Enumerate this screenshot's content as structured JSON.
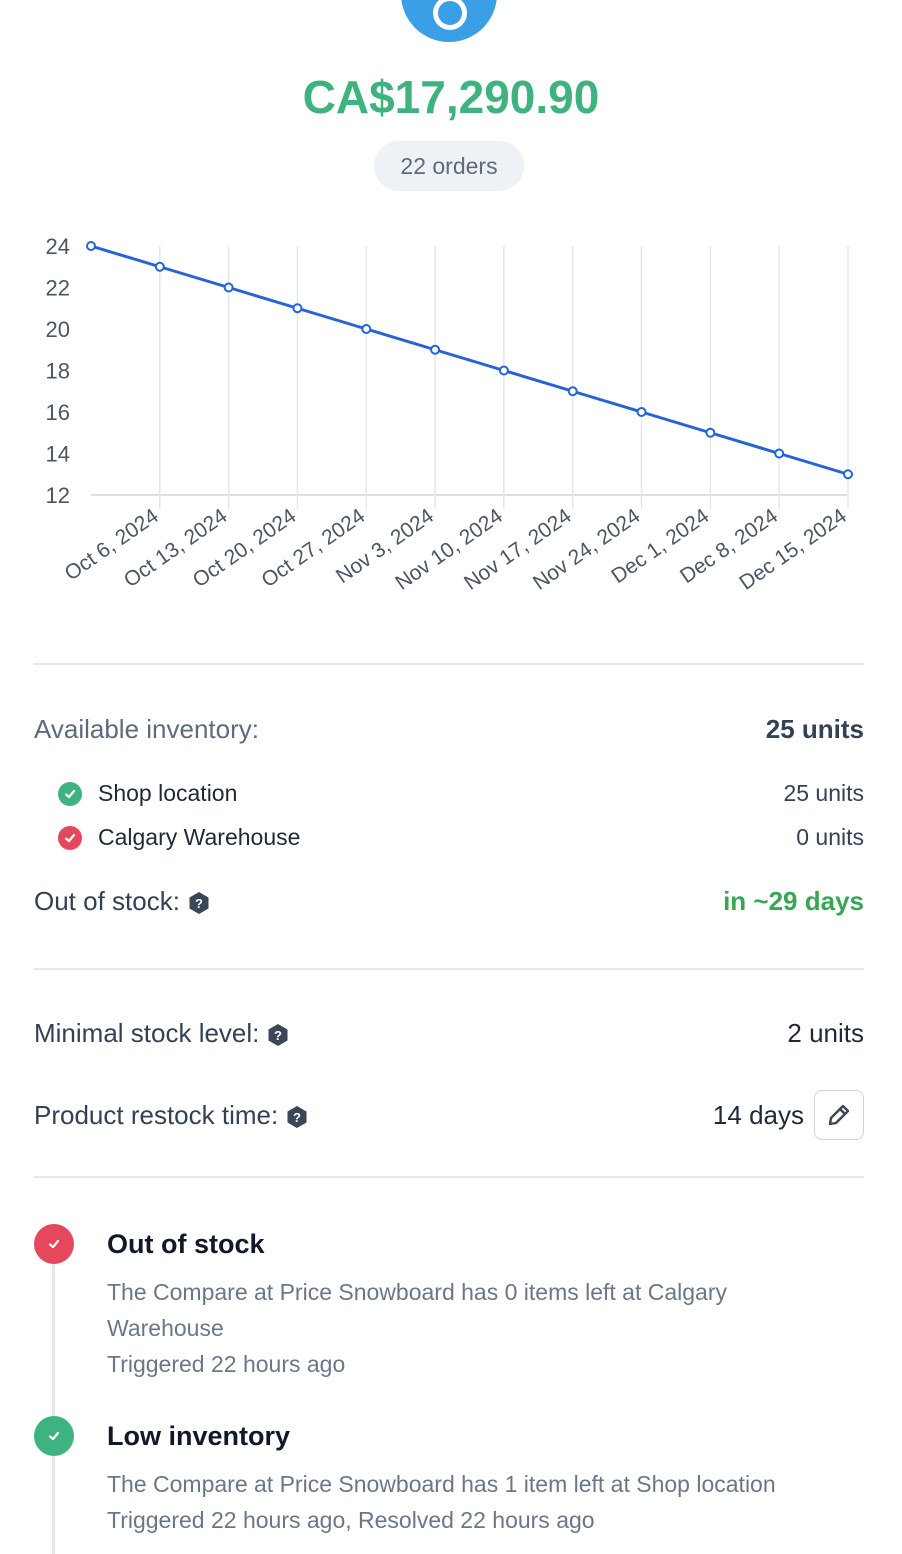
{
  "header": {
    "amount": "CA$17,290.90",
    "orders": "22 orders"
  },
  "chart_data": {
    "type": "line",
    "categories": [
      null,
      "Oct 6, 2024",
      "Oct 13, 2024",
      "Oct 20, 2024",
      "Oct 27, 2024",
      "Nov 3, 2024",
      "Nov 10, 2024",
      "Nov 17, 2024",
      "Nov 24, 2024",
      "Dec 1, 2024",
      "Dec 8, 2024",
      "Dec 15, 2024"
    ],
    "values": [
      24,
      23,
      22,
      21,
      20,
      19,
      18,
      17,
      16,
      15,
      14,
      13
    ],
    "color": "#2563d9",
    "ylim": [
      12,
      24
    ],
    "yticks": [
      12,
      14,
      16,
      18,
      20,
      22,
      24
    ],
    "grid": true
  },
  "inventory": {
    "label": "Available inventory:",
    "total": "25 units",
    "locations": [
      {
        "name": "Shop location",
        "units": "25 units",
        "status": "ok"
      },
      {
        "name": "Calgary Warehouse",
        "units": "0 units",
        "status": "out"
      }
    ]
  },
  "out_of_stock": {
    "label": "Out of stock:",
    "value": "in ~29 days"
  },
  "settings": [
    {
      "label": "Minimal stock level:",
      "value": "2 units"
    },
    {
      "label": "Product restock time:",
      "value": "14 days"
    }
  ],
  "alerts": [
    {
      "title": "Out of stock",
      "description": "The Compare at Price Snowboard has 0 items left at Calgary Warehouse",
      "meta": "Triggered 22 hours ago",
      "status": "out"
    },
    {
      "title": "Low inventory",
      "description": "The Compare at Price Snowboard has 1 item left at Shop location",
      "meta": "Triggered 22 hours ago, Resolved 22 hours ago",
      "status": "ok"
    }
  ]
}
